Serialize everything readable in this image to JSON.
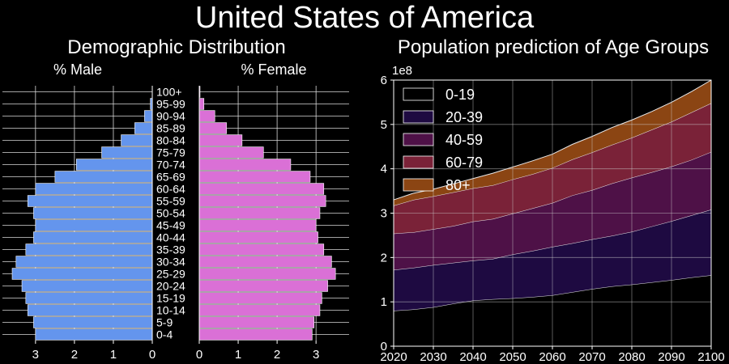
{
  "figure": {
    "title": "United States of America",
    "background": "#000000"
  },
  "chart_data": [
    {
      "type": "bar",
      "subtype": "population-pyramid",
      "title": "Demographic Distribution",
      "left_label": "% Male",
      "right_label": "% Female",
      "categories": [
        "0-4",
        "5-9",
        "10-14",
        "15-19",
        "20-24",
        "25-29",
        "30-34",
        "35-39",
        "40-44",
        "45-49",
        "50-54",
        "55-59",
        "60-64",
        "65-69",
        "70-74",
        "75-79",
        "80-84",
        "85-89",
        "90-94",
        "95-99",
        "100+"
      ],
      "series": [
        {
          "name": "% Male",
          "color": "#6495ED",
          "values": [
            3.0,
            3.05,
            3.2,
            3.25,
            3.35,
            3.6,
            3.5,
            3.25,
            3.05,
            3.0,
            3.05,
            3.2,
            3.0,
            2.5,
            1.95,
            1.3,
            0.8,
            0.45,
            0.2,
            0.05,
            0.0
          ]
        },
        {
          "name": "% Female",
          "color": "#DA70D6",
          "values": [
            2.9,
            2.95,
            3.1,
            3.15,
            3.3,
            3.5,
            3.4,
            3.2,
            3.05,
            3.0,
            3.1,
            3.25,
            3.2,
            2.85,
            2.35,
            1.65,
            1.1,
            0.7,
            0.4,
            0.12,
            0.02
          ]
        }
      ],
      "male_axis": {
        "ticks": [
          "3",
          "2",
          "1",
          "0"
        ],
        "lim": [
          3.85,
          0
        ]
      },
      "female_axis": {
        "ticks": [
          "0",
          "1",
          "2",
          "3"
        ],
        "lim": [
          0,
          3.85
        ]
      },
      "grid": true
    },
    {
      "type": "area",
      "stacked": true,
      "title": "Population prediction of Age Groups",
      "y_multiplier": "1e8",
      "x": [
        2020,
        2025,
        2030,
        2035,
        2040,
        2045,
        2050,
        2055,
        2060,
        2065,
        2070,
        2075,
        2080,
        2085,
        2090,
        2095,
        2100
      ],
      "xlim": [
        2020,
        2100
      ],
      "ylim": [
        0,
        6
      ],
      "x_ticks": [
        "2020",
        "2030",
        "2040",
        "2050",
        "2060",
        "2070",
        "2080",
        "2090",
        "2100"
      ],
      "y_ticks": [
        "0",
        "1",
        "2",
        "3",
        "4",
        "5",
        "6"
      ],
      "legend_position": "top-left",
      "grid": true,
      "series": [
        {
          "name": "0-19",
          "color": "#000000",
          "values": [
            0.8,
            0.83,
            0.88,
            0.96,
            1.03,
            1.06,
            1.08,
            1.11,
            1.15,
            1.22,
            1.29,
            1.35,
            1.39,
            1.44,
            1.49,
            1.55,
            1.6
          ]
        },
        {
          "name": "20-39",
          "color": "#1E0A41",
          "values": [
            0.92,
            0.94,
            0.95,
            0.92,
            0.9,
            0.91,
            0.99,
            1.04,
            1.09,
            1.1,
            1.12,
            1.14,
            1.19,
            1.26,
            1.33,
            1.4,
            1.48
          ]
        },
        {
          "name": "40-59",
          "color": "#4E1147",
          "values": [
            0.82,
            0.8,
            0.81,
            0.83,
            0.88,
            0.9,
            0.92,
            0.96,
            0.99,
            1.08,
            1.11,
            1.18,
            1.22,
            1.22,
            1.23,
            1.25,
            1.3
          ]
        },
        {
          "name": "60-79",
          "color": "#7A2238",
          "values": [
            0.63,
            0.73,
            0.74,
            0.76,
            0.75,
            0.76,
            0.77,
            0.77,
            0.79,
            0.81,
            0.85,
            0.87,
            0.9,
            0.96,
            1.01,
            1.07,
            1.1
          ]
        },
        {
          "name": "80+",
          "color": "#8B4513",
          "values": [
            0.13,
            0.15,
            0.16,
            0.19,
            0.22,
            0.27,
            0.28,
            0.3,
            0.31,
            0.34,
            0.36,
            0.39,
            0.4,
            0.41,
            0.44,
            0.47,
            0.52
          ]
        }
      ]
    }
  ]
}
